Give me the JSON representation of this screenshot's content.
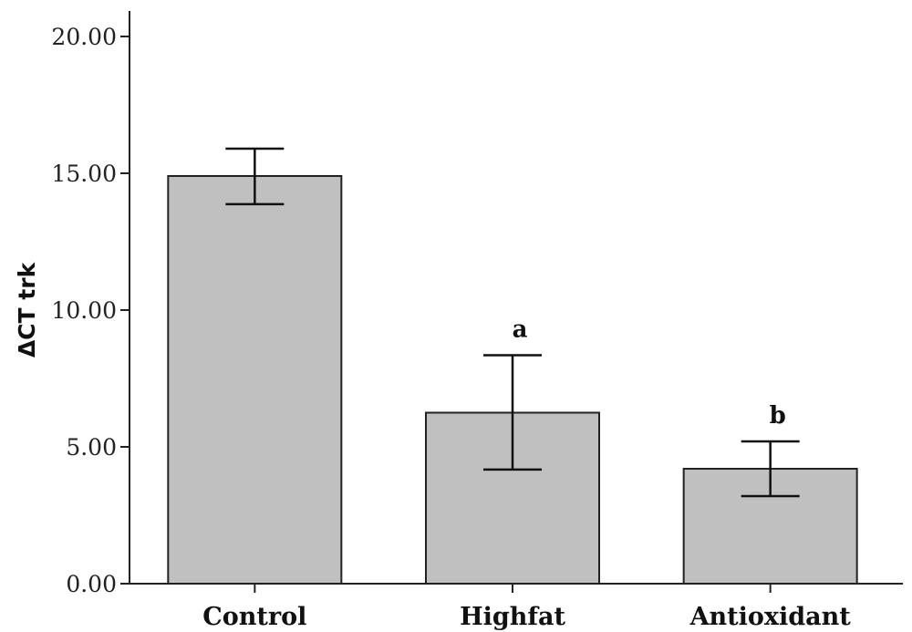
{
  "chart_data": {
    "type": "bar",
    "title": "",
    "xlabel": "",
    "ylabel": "ΔCT trk",
    "ylim": [
      0,
      20
    ],
    "yticks": [
      0,
      5,
      10,
      15,
      20
    ],
    "ytick_labels": [
      "0.00",
      "5.00",
      "10.00",
      "15.00",
      "20.00"
    ],
    "categories": [
      "Control",
      "Highfat",
      "Antioxidant"
    ],
    "values": [
      14.9,
      6.25,
      4.2
    ],
    "error_low": [
      13.87,
      4.17,
      3.2
    ],
    "error_high": [
      15.9,
      8.35,
      5.2
    ],
    "annotations": [
      "",
      "a",
      "b"
    ],
    "bar_color": "#c0c0c0",
    "grid": false
  }
}
